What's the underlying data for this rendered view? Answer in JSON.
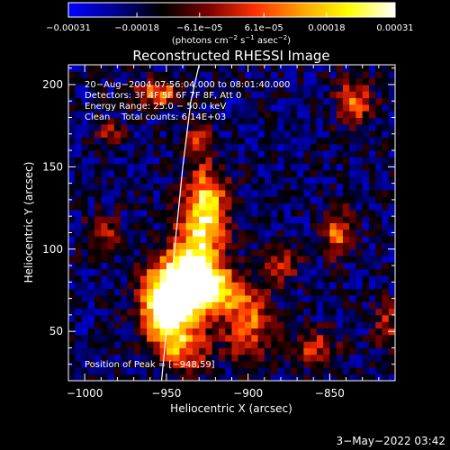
{
  "chart_data": {
    "type": "heatmap",
    "title": "Reconstructed RHESSI Image",
    "xlabel": "Heliocentric X (arcsec)",
    "ylabel": "Heliocentric Y (arcsec)",
    "xlim": [
      -1010,
      -810
    ],
    "ylim": [
      20,
      212
    ],
    "x_ticks": [
      -1000,
      -950,
      -900,
      -850
    ],
    "x_tick_labels": [
      "−1000",
      "−950",
      "−900",
      "−850"
    ],
    "y_ticks": [
      50,
      100,
      150,
      200
    ],
    "y_tick_labels": [
      "50",
      "100",
      "150",
      "200"
    ],
    "colorbar": {
      "ticks": [
        -0.00031,
        -0.00018,
        -6.1e-05,
        6.1e-05,
        0.00018,
        0.00031
      ],
      "tick_labels": [
        "−0.00031",
        "−0.00018",
        "−6.1e−05",
        "6.1e−05",
        "0.00018",
        "0.00031"
      ],
      "units_main": "(photons cm",
      "units_exp1": "−2",
      "units_mid1": " s",
      "units_exp2": "−1",
      "units_mid2": " asec",
      "units_exp3": "−2",
      "units_end": ")",
      "colors": [
        "#0000ff",
        "#000090",
        "#000000",
        "#7a0000",
        "#ff3000",
        "#ffa000",
        "#ffff00",
        "#ffffff"
      ]
    },
    "annotations": [
      "20−Aug−2004 07:56:04.000 to 08:01:40.000",
      "Detectors: 3F 4F 5F 6F 7F 8F, Att 0",
      "Energy Range: 25.0 − 50.0 keV",
      "Clean    Total counts: 6.14E+03"
    ],
    "peak_label": "Position of Peak = [−948,59]",
    "peak": [
      -948,
      59
    ],
    "limb_curve": {
      "x": [
        -953,
        -951,
        -948,
        -944,
        -940,
        -935,
        -930
      ],
      "y": [
        20,
        40,
        70,
        110,
        150,
        190,
        212
      ]
    },
    "sources": [
      {
        "x": -950,
        "y": 60,
        "amp": 1.0,
        "sx": 10,
        "sy": 12
      },
      {
        "x": -945,
        "y": 80,
        "amp": 0.9,
        "sx": 12,
        "sy": 12
      },
      {
        "x": -925,
        "y": 75,
        "amp": 0.85,
        "sx": 14,
        "sy": 10
      },
      {
        "x": -930,
        "y": 100,
        "amp": 0.75,
        "sx": 10,
        "sy": 18
      },
      {
        "x": -925,
        "y": 130,
        "amp": 0.7,
        "sx": 9,
        "sy": 14
      },
      {
        "x": -940,
        "y": 40,
        "amp": 0.5,
        "sx": 12,
        "sy": 10
      },
      {
        "x": -900,
        "y": 55,
        "amp": 0.55,
        "sx": 10,
        "sy": 14
      },
      {
        "x": -880,
        "y": 90,
        "amp": 0.4,
        "sx": 8,
        "sy": 8
      },
      {
        "x": -845,
        "y": 110,
        "amp": 0.6,
        "sx": 6,
        "sy": 10
      },
      {
        "x": -835,
        "y": 190,
        "amp": 0.5,
        "sx": 8,
        "sy": 10
      },
      {
        "x": -955,
        "y": 195,
        "amp": 0.55,
        "sx": 10,
        "sy": 6
      },
      {
        "x": -930,
        "y": 165,
        "amp": 0.4,
        "sx": 6,
        "sy": 8
      },
      {
        "x": -990,
        "y": 110,
        "amp": 0.35,
        "sx": 8,
        "sy": 8
      },
      {
        "x": -985,
        "y": 170,
        "amp": 0.3,
        "sx": 6,
        "sy": 6
      },
      {
        "x": -860,
        "y": 40,
        "amp": 0.4,
        "sx": 10,
        "sy": 8
      },
      {
        "x": -815,
        "y": 55,
        "amp": 0.35,
        "sx": 6,
        "sy": 10
      }
    ]
  },
  "footer": {
    "date": "3−May−2022 03:42"
  }
}
